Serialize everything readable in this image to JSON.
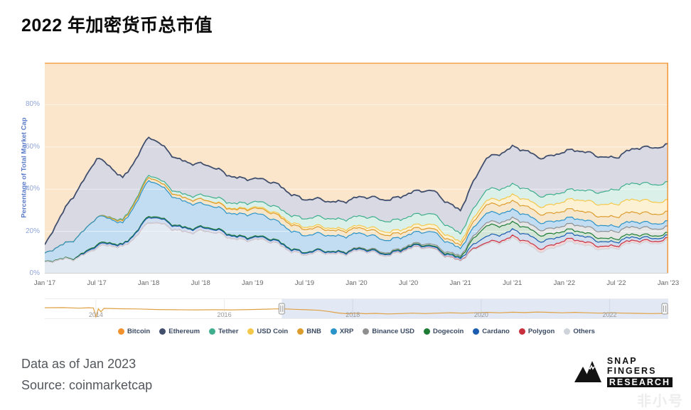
{
  "header": {
    "title": "2022 年加密货币总市值"
  },
  "footer": {
    "data_as_of": "Data as of Jan 2023",
    "source": "Source: coinmarketcap",
    "watermark": "非小号"
  },
  "logo": {
    "line1": "SNAP",
    "line2": "FINGERS",
    "line3": "RESEARCH"
  },
  "chart_data": {
    "type": "area",
    "stacking": "percent",
    "title": "",
    "ylabel": "Percentage of Total Market Cap",
    "ylim": [
      0,
      100
    ],
    "grid": "horizontal-faint",
    "legend_position": "bottom-center",
    "x_start": "Jan '17",
    "x_end": "Jan '23",
    "x_step_months": 3,
    "x_tick_labels": [
      "Jan '17",
      "Jul '17",
      "Jan '18",
      "Jul '18",
      "Jan '19",
      "Jul '19",
      "Jan '20",
      "Jul '20",
      "Jan '21",
      "Jul '21",
      "Jan '22",
      "Jul '22",
      "Jan '23"
    ],
    "y_ticks": [
      {
        "value": 0,
        "label": "0%"
      },
      {
        "value": 20,
        "label": "20%"
      },
      {
        "value": 40,
        "label": "40%"
      },
      {
        "value": 60,
        "label": "60%"
      },
      {
        "value": 80,
        "label": "80%"
      }
    ],
    "series": [
      {
        "name": "Bitcoin",
        "color": "#f2922e",
        "fill": "#fbe6cb",
        "values": [
          87,
          65,
          45,
          55,
          35,
          45,
          48,
          53,
          55,
          58,
          65,
          66,
          64,
          65,
          62,
          61,
          70,
          45,
          40,
          45,
          42,
          43,
          45,
          40,
          39
        ]
      },
      {
        "name": "Ethereum",
        "color": "#414f6d",
        "fill": "#d9d9e4",
        "values": [
          4,
          20,
          28,
          20,
          18,
          16,
          15,
          13,
          11,
          11,
          9,
          8,
          9,
          10,
          11,
          11,
          11,
          15,
          18,
          18,
          19,
          18,
          15,
          17,
          18
        ]
      },
      {
        "name": "Tether",
        "color": "#3fae8d",
        "fill": "rgba(63,174,141,0.18)",
        "values": [
          0,
          0,
          0,
          0.5,
          1,
          1.5,
          2,
          2.5,
          2.5,
          3,
          4,
          4.5,
          4.5,
          5,
          5,
          5,
          4,
          5,
          5,
          5,
          4.5,
          5,
          7,
          8,
          8.5
        ]
      },
      {
        "name": "USD Coin",
        "color": "#f4c84b",
        "fill": "rgba(244,200,75,0.25)",
        "values": [
          0,
          0,
          0,
          0,
          0,
          0,
          0,
          0.3,
          0.5,
          0.7,
          1,
          1,
          1,
          1.5,
          1.5,
          2,
          1.5,
          2,
          3,
          3.5,
          4.5,
          5.5,
          6,
          6,
          5.5
        ]
      },
      {
        "name": "BNB",
        "color": "#dd9c2e",
        "fill": "rgba(221,156,46,0.25)",
        "values": [
          0,
          0,
          0,
          1,
          1.5,
          1.5,
          2,
          2,
          2.5,
          3,
          3,
          2.5,
          2.5,
          2.5,
          2,
          1.5,
          1.5,
          4,
          4,
          4,
          4,
          4,
          4.5,
          4.5,
          4.5
        ]
      },
      {
        "name": "XRP",
        "color": "#2a93c9",
        "fill": "rgba(120,180,225,0.45)",
        "values": [
          4,
          8,
          13,
          10,
          17,
          13,
          11,
          10,
          11,
          9,
          8,
          7.5,
          7,
          6,
          5,
          6,
          3.5,
          4.5,
          4,
          3.5,
          3,
          3,
          2.5,
          2.5,
          2.5
        ]
      },
      {
        "name": "Binance USD",
        "color": "#8f8f8f",
        "fill": "rgba(143,143,143,0.22)",
        "values": [
          0,
          0,
          0,
          0,
          0,
          0,
          0,
          0,
          0,
          0,
          0,
          0,
          0.3,
          0.5,
          0.5,
          0.7,
          0.7,
          1.5,
          2,
          2.5,
          2.5,
          3,
          3.5,
          3.5,
          3
        ]
      },
      {
        "name": "Dogecoin",
        "color": "#1e7c35",
        "fill": "rgba(30,124,53,0.2)",
        "values": [
          0.2,
          0.3,
          0.5,
          0.3,
          0.5,
          0.4,
          0.4,
          0.4,
          0.4,
          0.4,
          0.3,
          0.3,
          0.3,
          0.3,
          0.4,
          0.4,
          0.6,
          5,
          3.5,
          3,
          2,
          1.8,
          1.5,
          1.3,
          1.2
        ]
      },
      {
        "name": "Cardano",
        "color": "#1b5cb0",
        "fill": "rgba(27,92,176,0.2)",
        "values": [
          0,
          0,
          1,
          0.8,
          2.5,
          1.8,
          1.5,
          1.2,
          1,
          1,
          0.8,
          0.7,
          0.7,
          0.7,
          0.8,
          0.8,
          1,
          3,
          3,
          3.5,
          2.5,
          2.5,
          1.8,
          1.4,
          1.3
        ]
      },
      {
        "name": "Polygon",
        "color": "#c8303e",
        "fill": "rgba(200,48,62,0.2)",
        "values": [
          0,
          0,
          0,
          0,
          0,
          0,
          0,
          0,
          0,
          0,
          0,
          0,
          0,
          0,
          0.1,
          0.1,
          0.2,
          0.7,
          1,
          1.5,
          1.5,
          1.5,
          1.2,
          1.1,
          1
        ]
      },
      {
        "name": "Others",
        "color": "#cfd4da",
        "fill": "rgba(176,196,216,0.35)",
        "values": [
          4.8,
          6.7,
          12.5,
          12.4,
          24.5,
          20.8,
          20.1,
          17.6,
          16.1,
          13.9,
          8.9,
          9.5,
          10.7,
          8.5,
          11.7,
          11.5,
          6.0,
          14.3,
          16.5,
          10.5,
          14.5,
          12.7,
          12.0,
          14.7,
          15.5
        ]
      }
    ],
    "navigator": {
      "line_color": "#e0a145",
      "mask_color": "rgba(102,133,194,0.18)",
      "selected_from": 0.38,
      "x_labels": [
        {
          "label": "2014",
          "pos": 0.082
        },
        {
          "label": "2016",
          "pos": 0.288
        },
        {
          "label": "2018",
          "pos": 0.494
        },
        {
          "label": "2020",
          "pos": 0.7
        },
        {
          "label": "2022",
          "pos": 0.906
        }
      ],
      "points": [
        [
          0,
          0.55
        ],
        [
          0.03,
          0.56
        ],
        [
          0.055,
          0.53
        ],
        [
          0.07,
          0.55
        ],
        [
          0.078,
          0.54
        ],
        [
          0.082,
          0.08
        ],
        [
          0.086,
          0.5
        ],
        [
          0.09,
          0.34
        ],
        [
          0.095,
          0.52
        ],
        [
          0.12,
          0.5
        ],
        [
          0.15,
          0.49
        ],
        [
          0.18,
          0.46
        ],
        [
          0.21,
          0.45
        ],
        [
          0.24,
          0.44
        ],
        [
          0.27,
          0.45
        ],
        [
          0.3,
          0.44
        ],
        [
          0.33,
          0.46
        ],
        [
          0.36,
          0.48
        ],
        [
          0.38,
          0.5
        ],
        [
          0.4,
          0.47
        ],
        [
          0.42,
          0.45
        ],
        [
          0.44,
          0.42
        ],
        [
          0.455,
          0.36
        ],
        [
          0.47,
          0.28
        ],
        [
          0.485,
          0.24
        ],
        [
          0.5,
          0.27
        ],
        [
          0.515,
          0.24
        ],
        [
          0.53,
          0.26
        ],
        [
          0.55,
          0.23
        ],
        [
          0.57,
          0.25
        ],
        [
          0.59,
          0.27
        ],
        [
          0.61,
          0.25
        ],
        [
          0.63,
          0.27
        ],
        [
          0.65,
          0.29
        ],
        [
          0.67,
          0.27
        ],
        [
          0.69,
          0.29
        ],
        [
          0.71,
          0.31
        ],
        [
          0.73,
          0.29
        ],
        [
          0.75,
          0.32
        ],
        [
          0.77,
          0.3
        ],
        [
          0.79,
          0.33
        ],
        [
          0.81,
          0.31
        ],
        [
          0.83,
          0.29
        ],
        [
          0.85,
          0.31
        ],
        [
          0.87,
          0.29
        ],
        [
          0.89,
          0.27
        ],
        [
          0.91,
          0.29
        ],
        [
          0.93,
          0.27
        ],
        [
          0.95,
          0.26
        ],
        [
          0.97,
          0.25
        ],
        [
          1,
          0.26
        ]
      ]
    }
  }
}
